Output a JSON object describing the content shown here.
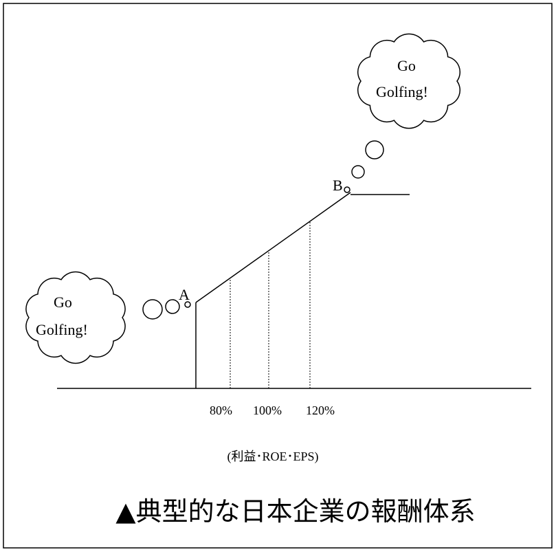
{
  "clouds": [
    {
      "lines": [
        "Go",
        "Golfing!"
      ]
    },
    {
      "lines": [
        "Go",
        "Golfing!"
      ]
    }
  ],
  "points": [
    {
      "label": "A"
    },
    {
      "label": "B"
    }
  ],
  "axis": {
    "ticks": [
      "80%",
      "100%",
      "120%"
    ],
    "label": "(利益･ROE･EPS)"
  },
  "caption": "▲典型的な日本企業の報酬体系"
}
